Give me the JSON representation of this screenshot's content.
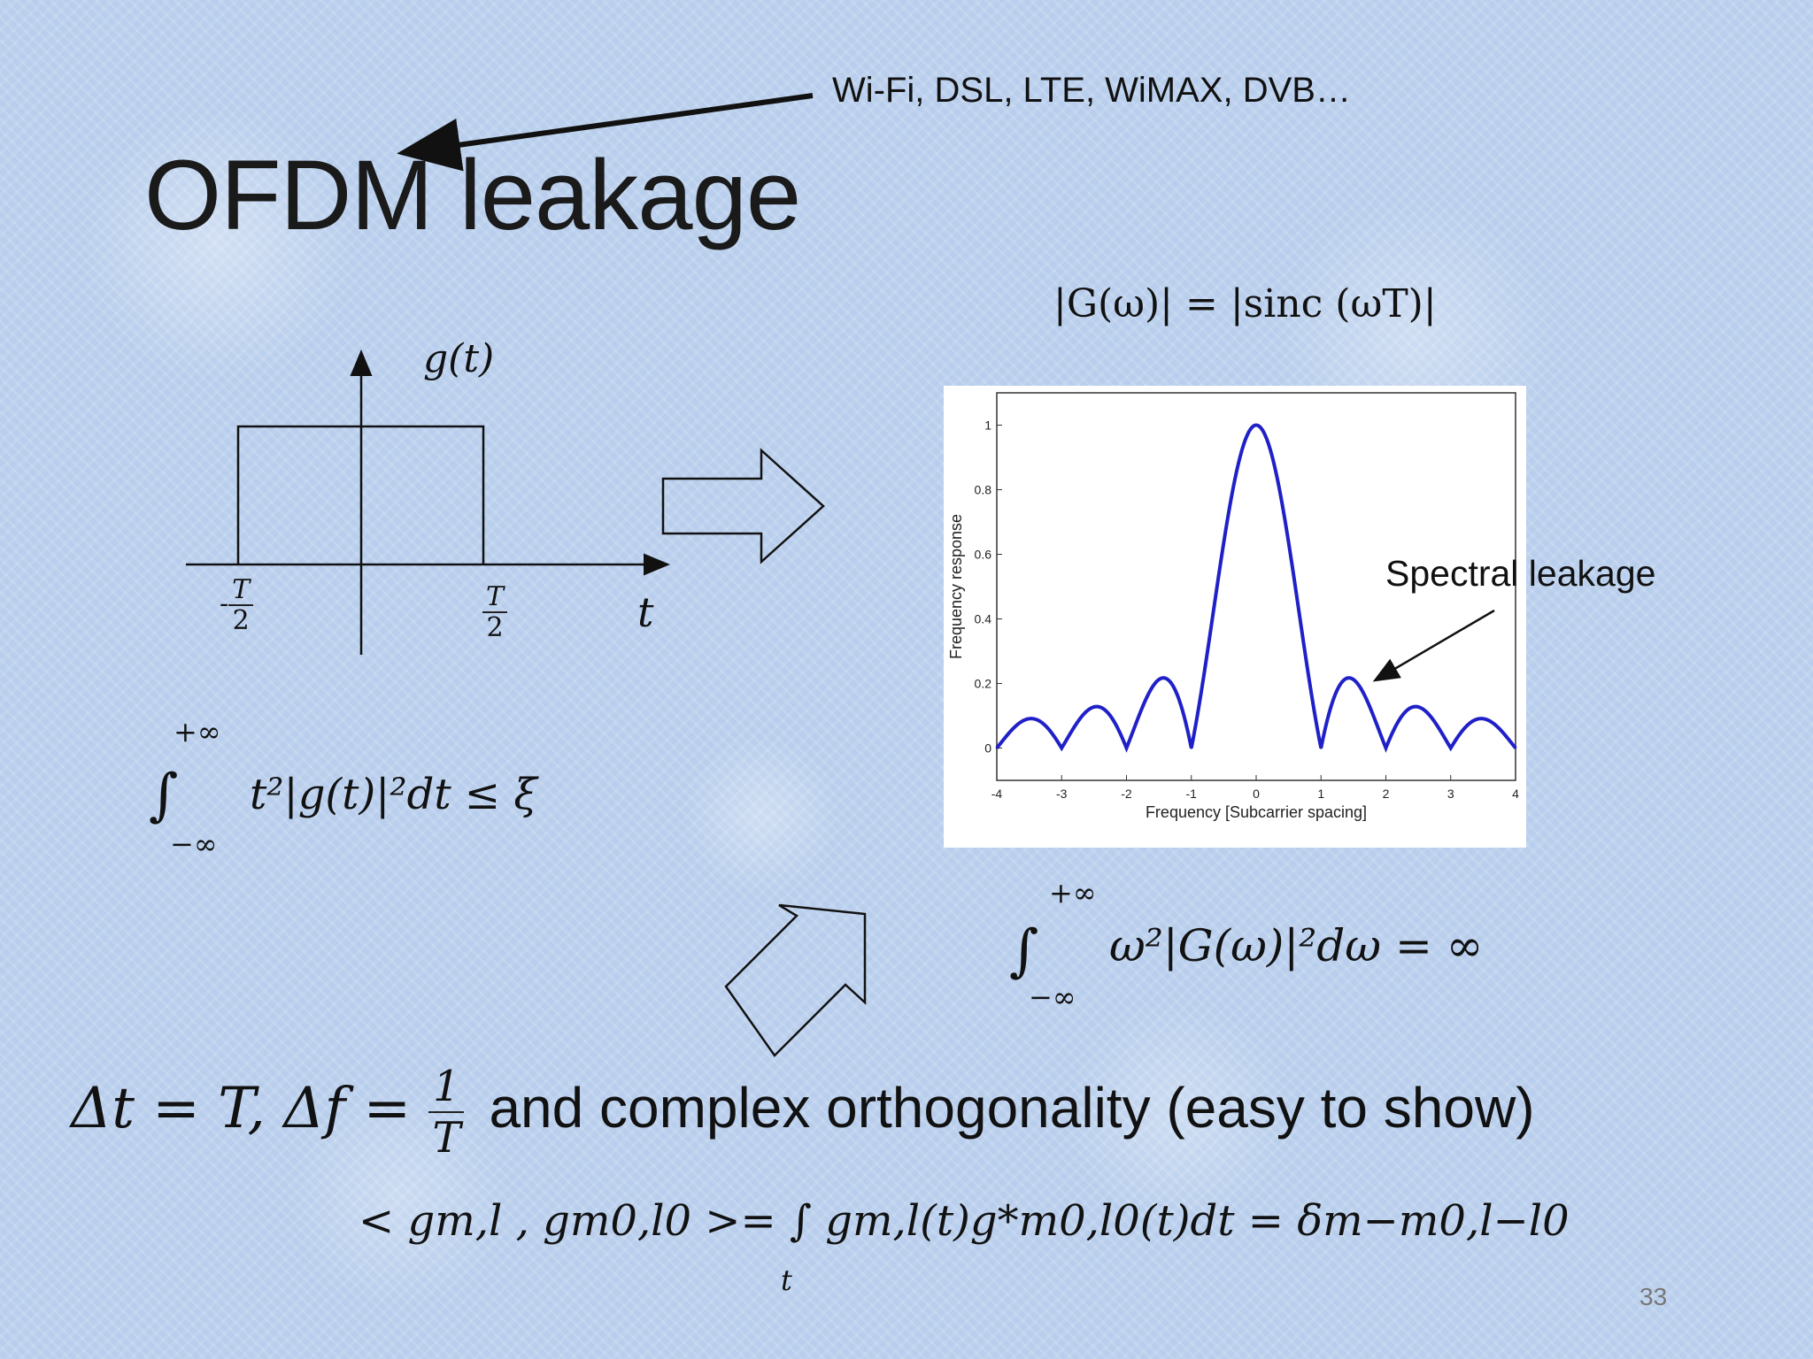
{
  "slide": {
    "title": "OFDM leakage",
    "callout": "Wi-Fi, DSL, LTE, WiMAX, DVB…",
    "page_number": "33"
  },
  "pulse_diagram": {
    "function_label": "g(t)",
    "left_tick_num": "T",
    "left_tick_den": "2",
    "left_tick_sign": "-",
    "right_tick_num": "T",
    "right_tick_den": "2",
    "axis_label": "t"
  },
  "formulas": {
    "sinc": "|G(ω)| = |sinc (ωT)|",
    "time_int_upper": "+∞",
    "time_int_lower": "−∞",
    "time_int_body": "t²|g(t)|²dt ≤ ξ",
    "freq_int_upper": "+∞",
    "freq_int_lower": "−∞",
    "freq_int_body": "ω²|G(ω)|²dω = ∞",
    "ortho_lhs": "Δt = T, Δf = ",
    "ortho_num": "1",
    "ortho_den": "T",
    "ortho_rhs": "and complex orthogonality (easy to show)",
    "inner_product": "< gm,l , gm0,l0 >= ∫ gm,l(t)g*m0,l0(t)dt = δm−m0,l−l0",
    "inner_product_sub": "t"
  },
  "annotation": {
    "spectral_leakage": "Spectral leakage"
  },
  "colors": {
    "curve": "#2020c8",
    "background": "#bcd1ee",
    "text": "#111111"
  },
  "chart_data": {
    "type": "line",
    "function": "|sinc(x)|",
    "x": [
      -4,
      -3.75,
      -3.5,
      -3.25,
      -3,
      -2.75,
      -2.5,
      -2.25,
      -2,
      -1.75,
      -1.5,
      -1.25,
      -1,
      -0.75,
      -0.5,
      -0.25,
      0,
      0.25,
      0.5,
      0.75,
      1,
      1.25,
      1.5,
      1.75,
      2,
      2.25,
      2.5,
      2.75,
      3,
      3.25,
      3.5,
      3.75,
      4
    ],
    "y": [
      0,
      0.06,
      0.09,
      0.07,
      0,
      0.08,
      0.13,
      0.1,
      0,
      0.13,
      0.21,
      0.18,
      0,
      0.3,
      0.64,
      0.9,
      1,
      0.9,
      0.64,
      0.3,
      0,
      0.18,
      0.21,
      0.13,
      0,
      0.1,
      0.13,
      0.08,
      0,
      0.07,
      0.09,
      0.06,
      0
    ],
    "xlabel": "Frequency [Subcarrier spacing]",
    "ylabel": "Frequency response",
    "xlim": [
      -4,
      4
    ],
    "ylim": [
      -0.1,
      1.1
    ],
    "xticks": [
      "-4",
      "-3",
      "-2",
      "-1",
      "0",
      "1",
      "2",
      "3",
      "4"
    ],
    "yticks": [
      "0",
      "0.2",
      "0.4",
      "0.6",
      "0.8",
      "1"
    ],
    "grid": false
  }
}
